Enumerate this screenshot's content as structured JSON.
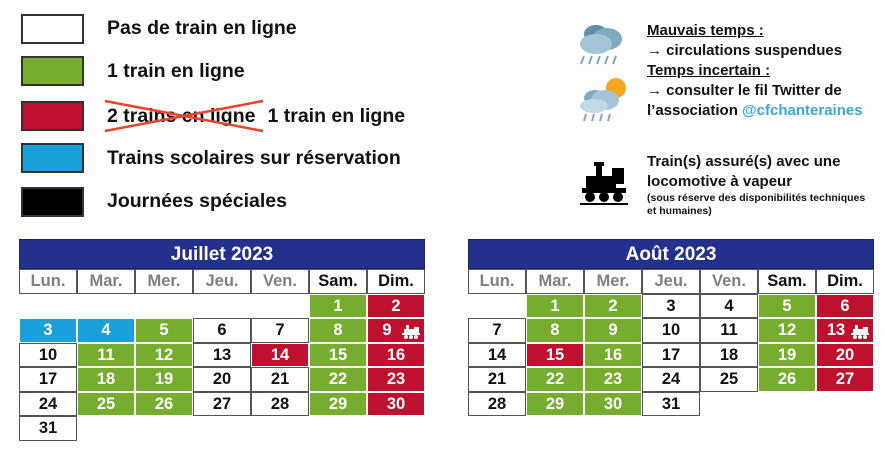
{
  "legend": {
    "items": [
      {
        "label": "Pas de train en ligne",
        "color": "#ffffff"
      },
      {
        "label": "1 train en ligne",
        "color": "#76ad2e"
      },
      {
        "struck": "2 trains en ligne",
        "label": "1 train en ligne",
        "color": "#c0102f"
      },
      {
        "label": "Trains scolaires sur réservation",
        "color": "#1aa1dc"
      },
      {
        "label": "Journées spéciales",
        "color": "#000000"
      }
    ]
  },
  "info": {
    "bad_weather_title": "Mauvais temps :",
    "bad_weather_text": "→ circulations suspendues",
    "uncertain_title": "Temps incertain :",
    "uncertain_line1": "→ consulter le fil Twitter de",
    "uncertain_line2": "l’association",
    "twitter_handle": "@cfchanteraines",
    "steam_line1": "Train(s) assuré(s) avec une",
    "steam_line2": "locomotive à vapeur",
    "steam_note1": "(sous réserve des disponibilités techniques",
    "steam_note2": "et humaines)"
  },
  "calendars": [
    {
      "title": "Juillet 2023",
      "days": [
        "Lun.",
        "Mar.",
        "Mer.",
        "Jeu.",
        "Ven.",
        "Sam.",
        "Dim."
      ],
      "weeks": [
        [
          {
            "d": ""
          },
          {
            "d": ""
          },
          {
            "d": ""
          },
          {
            "d": ""
          },
          {
            "d": ""
          },
          {
            "d": "1",
            "s": "green"
          },
          {
            "d": "2",
            "s": "red"
          }
        ],
        [
          {
            "d": "3",
            "s": "blue"
          },
          {
            "d": "4",
            "s": "blue"
          },
          {
            "d": "5",
            "s": "green"
          },
          {
            "d": "6",
            "s": "white"
          },
          {
            "d": "7",
            "s": "white"
          },
          {
            "d": "8",
            "s": "green"
          },
          {
            "d": "9",
            "s": "red",
            "steam": true
          }
        ],
        [
          {
            "d": "10",
            "s": "white"
          },
          {
            "d": "11",
            "s": "green"
          },
          {
            "d": "12",
            "s": "green"
          },
          {
            "d": "13",
            "s": "white"
          },
          {
            "d": "14",
            "s": "red"
          },
          {
            "d": "15",
            "s": "green"
          },
          {
            "d": "16",
            "s": "red"
          }
        ],
        [
          {
            "d": "17",
            "s": "white"
          },
          {
            "d": "18",
            "s": "green"
          },
          {
            "d": "19",
            "s": "green"
          },
          {
            "d": "20",
            "s": "white"
          },
          {
            "d": "21",
            "s": "white"
          },
          {
            "d": "22",
            "s": "green"
          },
          {
            "d": "23",
            "s": "red"
          }
        ],
        [
          {
            "d": "24",
            "s": "white"
          },
          {
            "d": "25",
            "s": "green"
          },
          {
            "d": "26",
            "s": "green"
          },
          {
            "d": "27",
            "s": "white"
          },
          {
            "d": "28",
            "s": "white"
          },
          {
            "d": "29",
            "s": "green"
          },
          {
            "d": "30",
            "s": "red"
          }
        ],
        [
          {
            "d": "31",
            "s": "white"
          }
        ]
      ]
    },
    {
      "title": "Août 2023",
      "days": [
        "Lun.",
        "Mar.",
        "Mer.",
        "Jeu.",
        "Ven.",
        "Sam.",
        "Dim."
      ],
      "weeks": [
        [
          {
            "d": ""
          },
          {
            "d": "1",
            "s": "green"
          },
          {
            "d": "2",
            "s": "green"
          },
          {
            "d": "3",
            "s": "white"
          },
          {
            "d": "4",
            "s": "white"
          },
          {
            "d": "5",
            "s": "green"
          },
          {
            "d": "6",
            "s": "red"
          }
        ],
        [
          {
            "d": "7",
            "s": "white"
          },
          {
            "d": "8",
            "s": "green"
          },
          {
            "d": "9",
            "s": "green"
          },
          {
            "d": "10",
            "s": "white"
          },
          {
            "d": "11",
            "s": "white"
          },
          {
            "d": "12",
            "s": "green"
          },
          {
            "d": "13",
            "s": "red",
            "steam": true
          }
        ],
        [
          {
            "d": "14",
            "s": "white"
          },
          {
            "d": "15",
            "s": "red"
          },
          {
            "d": "16",
            "s": "green"
          },
          {
            "d": "17",
            "s": "white"
          },
          {
            "d": "18",
            "s": "white"
          },
          {
            "d": "19",
            "s": "green"
          },
          {
            "d": "20",
            "s": "red"
          }
        ],
        [
          {
            "d": "21",
            "s": "white"
          },
          {
            "d": "22",
            "s": "green"
          },
          {
            "d": "23",
            "s": "green"
          },
          {
            "d": "24",
            "s": "white"
          },
          {
            "d": "25",
            "s": "white"
          },
          {
            "d": "26",
            "s": "green"
          },
          {
            "d": "27",
            "s": "red"
          }
        ],
        [
          {
            "d": "28",
            "s": "white"
          },
          {
            "d": "29",
            "s": "green"
          },
          {
            "d": "30",
            "s": "green"
          },
          {
            "d": "31",
            "s": "white"
          }
        ]
      ]
    }
  ]
}
